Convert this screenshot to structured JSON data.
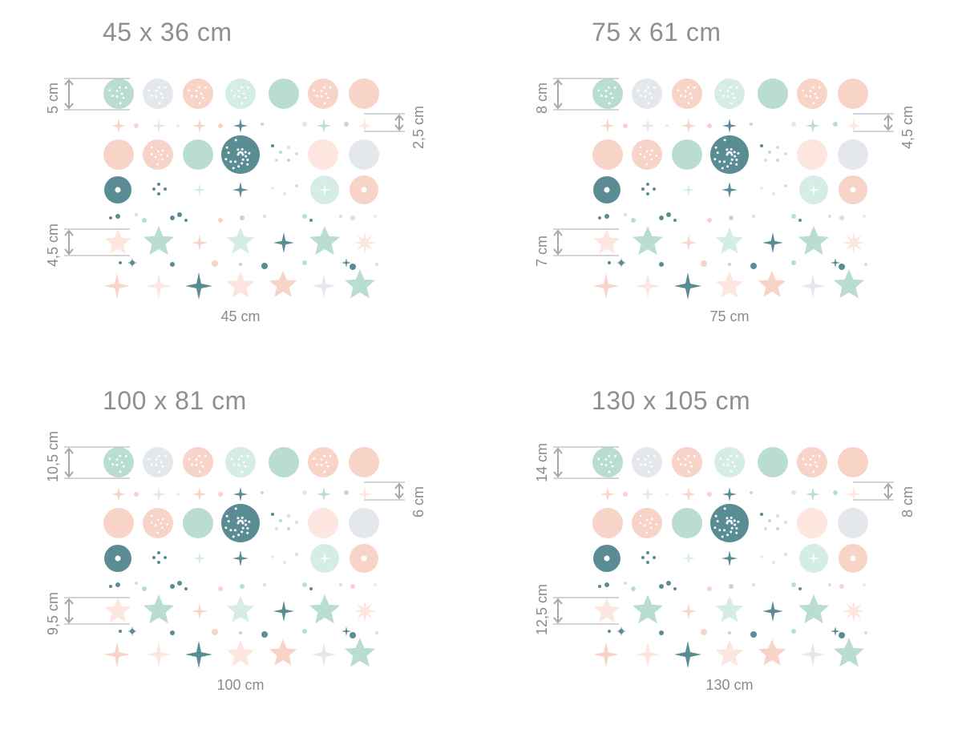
{
  "colors": {
    "peach": "#f8d3c8",
    "peach_light": "#fde6df",
    "mint": "#b9ddd3",
    "mint_light": "#d6ece6",
    "grey": "#e4e8ed",
    "teal": "#5a8c94",
    "dim": "#a8a8a8"
  },
  "panels": [
    {
      "title": "45 x 36 cm",
      "width_label": "45 cm",
      "circle_height": "5 cm",
      "star_height": "4,5 cm",
      "small_height": "2,5 cm"
    },
    {
      "title": "75 x 61 cm",
      "width_label": "75 cm",
      "circle_height": "8 cm",
      "star_height": "7 cm",
      "small_height": "4,5 cm"
    },
    {
      "title": "100 x 81 cm",
      "width_label": "100 cm",
      "circle_height": "10,5 cm",
      "star_height": "9,5 cm",
      "small_height": "6 cm"
    },
    {
      "title": "130 x 105 cm",
      "width_label": "130 cm",
      "circle_height": "14 cm",
      "star_height": "12,5 cm",
      "small_height": "8 cm"
    }
  ]
}
